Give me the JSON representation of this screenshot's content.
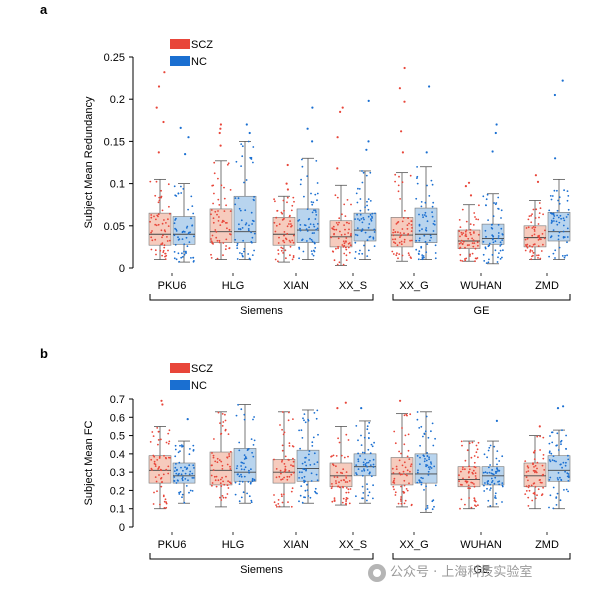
{
  "watermark": {
    "text": "公众号 · 上海科技实验室"
  },
  "chart_data": [
    {
      "panel": "a",
      "type": "box",
      "ylabel": "Subject Mean Redundancy",
      "ylim": [
        0,
        0.25
      ],
      "yticks": [
        0,
        0.05,
        0.1,
        0.15,
        0.2,
        0.25
      ],
      "ytick_labels": [
        "0",
        "0.05",
        "0.1",
        "0.15",
        "0.2",
        "0.25"
      ],
      "categories": [
        "PKU6",
        "HLG",
        "XIAN",
        "XX_S",
        "XX_G",
        "WUHAN",
        "ZMD"
      ],
      "groups": [
        {
          "name": "Siemens",
          "sites": [
            "PKU6",
            "HLG",
            "XIAN",
            "XX_S"
          ]
        },
        {
          "name": "GE",
          "sites": [
            "XX_G",
            "WUHAN",
            "ZMD"
          ]
        }
      ],
      "legend": [
        {
          "name": "SCZ",
          "color": "#e8463a"
        },
        {
          "name": "NC",
          "color": "#1a6fd1"
        }
      ],
      "series": [
        {
          "name": "SCZ",
          "color": "#e8463a",
          "box_color": "#f6cbbd",
          "stats": [
            {
              "min": 0.01,
              "q1": 0.027,
              "median": 0.04,
              "q3": 0.065,
              "max": 0.105
            },
            {
              "min": 0.01,
              "q1": 0.03,
              "median": 0.043,
              "q3": 0.07,
              "max": 0.127
            },
            {
              "min": 0.007,
              "q1": 0.027,
              "median": 0.04,
              "q3": 0.06,
              "max": 0.085
            },
            {
              "min": 0.003,
              "q1": 0.025,
              "median": 0.037,
              "q3": 0.056,
              "max": 0.098
            },
            {
              "min": 0.008,
              "q1": 0.025,
              "median": 0.039,
              "q3": 0.06,
              "max": 0.113
            },
            {
              "min": 0.008,
              "q1": 0.023,
              "median": 0.032,
              "q3": 0.045,
              "max": 0.075
            },
            {
              "min": 0.01,
              "q1": 0.025,
              "median": 0.036,
              "q3": 0.05,
              "max": 0.08
            }
          ],
          "outliers": [
            [
              0.232,
              0.215,
              0.19,
              0.173,
              0.137
            ],
            [
              0.17,
              0.165,
              0.16,
              0.145
            ],
            [
              0.122,
              0.1,
              0.093
            ],
            [
              0.19,
              0.185,
              0.155,
              0.118
            ],
            [
              0.237,
              0.213,
              0.197,
              0.162,
              0.137
            ],
            [
              0.101,
              0.097,
              0.086
            ],
            [
              0.11,
              0.102
            ]
          ]
        },
        {
          "name": "NC",
          "color": "#1a6fd1",
          "box_color": "#b8d4ee",
          "stats": [
            {
              "min": 0.007,
              "q1": 0.028,
              "median": 0.04,
              "q3": 0.061,
              "max": 0.1
            },
            {
              "min": 0.01,
              "q1": 0.03,
              "median": 0.043,
              "q3": 0.085,
              "max": 0.15
            },
            {
              "min": 0.01,
              "q1": 0.03,
              "median": 0.045,
              "q3": 0.07,
              "max": 0.13
            },
            {
              "min": 0.01,
              "q1": 0.032,
              "median": 0.045,
              "q3": 0.065,
              "max": 0.115
            },
            {
              "min": 0.01,
              "q1": 0.03,
              "median": 0.04,
              "q3": 0.071,
              "max": 0.12
            },
            {
              "min": 0.005,
              "q1": 0.028,
              "median": 0.035,
              "q3": 0.052,
              "max": 0.088
            },
            {
              "min": 0.01,
              "q1": 0.032,
              "median": 0.043,
              "q3": 0.066,
              "max": 0.105
            }
          ],
          "outliers": [
            [
              0.166,
              0.155,
              0.135
            ],
            [
              0.17,
              0.16
            ],
            [
              0.19,
              0.165,
              0.15
            ],
            [
              0.198,
              0.15,
              0.14
            ],
            [
              0.215,
              0.137
            ],
            [
              0.17,
              0.16,
              0.138
            ],
            [
              0.222,
              0.205,
              0.13
            ]
          ]
        }
      ]
    },
    {
      "panel": "b",
      "type": "box",
      "ylabel": "Subject Mean FC",
      "ylim": [
        0,
        0.7
      ],
      "yticks": [
        0,
        0.1,
        0.2,
        0.3,
        0.4,
        0.5,
        0.6,
        0.7
      ],
      "ytick_labels": [
        "0",
        "0.1",
        "0.2",
        "0.3",
        "0.4",
        "0.5",
        "0.6",
        "0.7"
      ],
      "categories": [
        "PKU6",
        "HLG",
        "XIAN",
        "XX_S",
        "XX_G",
        "WUHAN",
        "ZMD"
      ],
      "groups": [
        {
          "name": "Siemens",
          "sites": [
            "PKU6",
            "HLG",
            "XIAN",
            "XX_S"
          ]
        },
        {
          "name": "GE",
          "sites": [
            "XX_G",
            "WUHAN",
            "ZMD"
          ]
        }
      ],
      "legend": [
        {
          "name": "SCZ",
          "color": "#e8463a"
        },
        {
          "name": "NC",
          "color": "#1a6fd1"
        }
      ],
      "series": [
        {
          "name": "SCZ",
          "color": "#e8463a",
          "box_color": "#f6cbbd",
          "stats": [
            {
              "min": 0.1,
              "q1": 0.24,
              "median": 0.31,
              "q3": 0.39,
              "max": 0.55
            },
            {
              "min": 0.11,
              "q1": 0.23,
              "median": 0.31,
              "q3": 0.41,
              "max": 0.63
            },
            {
              "min": 0.11,
              "q1": 0.24,
              "median": 0.3,
              "q3": 0.37,
              "max": 0.63
            },
            {
              "min": 0.12,
              "q1": 0.22,
              "median": 0.28,
              "q3": 0.35,
              "max": 0.55
            },
            {
              "min": 0.11,
              "q1": 0.23,
              "median": 0.29,
              "q3": 0.38,
              "max": 0.62
            },
            {
              "min": 0.1,
              "q1": 0.22,
              "median": 0.26,
              "q3": 0.33,
              "max": 0.47
            },
            {
              "min": 0.1,
              "q1": 0.22,
              "median": 0.28,
              "q3": 0.35,
              "max": 0.5
            }
          ],
          "outliers": [
            [
              0.69,
              0.67
            ],
            [],
            [],
            [
              0.68,
              0.65
            ],
            [
              0.69
            ],
            [],
            [
              0.55
            ]
          ]
        },
        {
          "name": "NC",
          "color": "#1a6fd1",
          "box_color": "#b8d4ee",
          "stats": [
            {
              "min": 0.13,
              "q1": 0.24,
              "median": 0.28,
              "q3": 0.35,
              "max": 0.47
            },
            {
              "min": 0.13,
              "q1": 0.25,
              "median": 0.3,
              "q3": 0.43,
              "max": 0.67
            },
            {
              "min": 0.13,
              "q1": 0.25,
              "median": 0.32,
              "q3": 0.42,
              "max": 0.64
            },
            {
              "min": 0.13,
              "q1": 0.28,
              "median": 0.33,
              "q3": 0.4,
              "max": 0.58
            },
            {
              "min": 0.08,
              "q1": 0.24,
              "median": 0.29,
              "q3": 0.4,
              "max": 0.63
            },
            {
              "min": 0.11,
              "q1": 0.23,
              "median": 0.28,
              "q3": 0.33,
              "max": 0.47
            },
            {
              "min": 0.1,
              "q1": 0.25,
              "median": 0.31,
              "q3": 0.39,
              "max": 0.53
            }
          ],
          "outliers": [
            [
              0.59
            ],
            [],
            [],
            [
              0.65
            ],
            [],
            [
              0.58
            ],
            [
              0.66,
              0.65
            ]
          ]
        }
      ]
    }
  ]
}
